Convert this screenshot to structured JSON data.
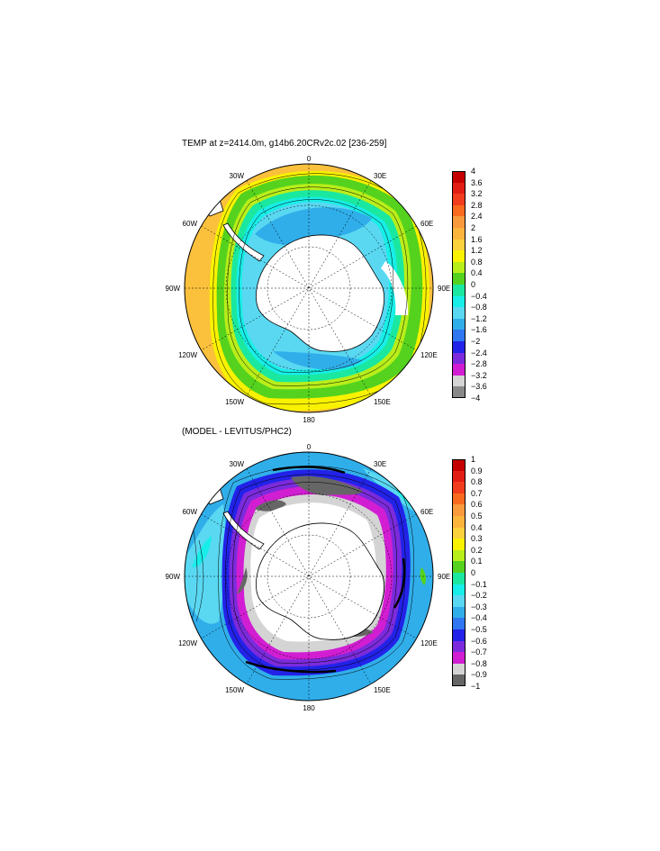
{
  "panels": [
    {
      "title": "TEMP at z=2414.0m, g14b6.20CRv2c.02 [236-259]",
      "lon_labels": {
        "deg0": "0",
        "deg30e": "30E",
        "deg60e": "60E",
        "deg90e": "90E",
        "deg120e": "120E",
        "deg150e": "150E",
        "deg180": "180",
        "deg150w": "150W",
        "deg120w": "120W",
        "deg90w": "90W",
        "deg60w": "60W",
        "deg30w": "30W"
      },
      "colorbar": {
        "labels": [
          "4",
          "3.6",
          "3.2",
          "2.8",
          "2.4",
          "2",
          "1.6",
          "1.2",
          "0.8",
          "0.4",
          "0",
          "−0.4",
          "−0.8",
          "−1.2",
          "−1.6",
          "−2",
          "−2.4",
          "−2.8",
          "−3.2",
          "−3.6",
          "−4"
        ],
        "colors": [
          "#c40000",
          "#e21d14",
          "#f23c1e",
          "#f96a1e",
          "#f99a3c",
          "#fbb43c",
          "#fbd23c",
          "#f8f200",
          "#b8ee1a",
          "#54d21e",
          "#1be8a0",
          "#18eee8",
          "#5ad8f2",
          "#30aeea",
          "#2f76f0",
          "#2222e8",
          "#7b2bdc",
          "#d21ed2",
          "#d4d4d4",
          "#888888"
        ]
      }
    },
    {
      "title": "(MODEL - LEVITUS/PHC2)",
      "lon_labels": {
        "deg0": "0",
        "deg30e": "30E",
        "deg60e": "60E",
        "deg90e": "90E",
        "deg120e": "120E",
        "deg150e": "150E",
        "deg180": "180",
        "deg150w": "150W",
        "deg120w": "120W",
        "deg90w": "90W",
        "deg60w": "60W",
        "deg30w": "30W"
      },
      "colorbar": {
        "labels": [
          "1",
          "0.9",
          "0.8",
          "0.7",
          "0.6",
          "0.5",
          "0.4",
          "0.3",
          "0.2",
          "0.1",
          "0",
          "−0.1",
          "−0.2",
          "−0.3",
          "−0.4",
          "−0.5",
          "−0.6",
          "−0.7",
          "−0.8",
          "−0.9",
          "−1"
        ],
        "colors": [
          "#c40000",
          "#e21d14",
          "#f23c1e",
          "#f96a1e",
          "#f99a3c",
          "#fbb43c",
          "#fbd23c",
          "#f8f200",
          "#b8ee1a",
          "#54d21e",
          "#1be8a0",
          "#18eee8",
          "#5ad8f2",
          "#30aeea",
          "#2f76f0",
          "#2222e8",
          "#7b2bdc",
          "#d21ed2",
          "#d4d4d4",
          "#666666"
        ]
      }
    }
  ]
}
